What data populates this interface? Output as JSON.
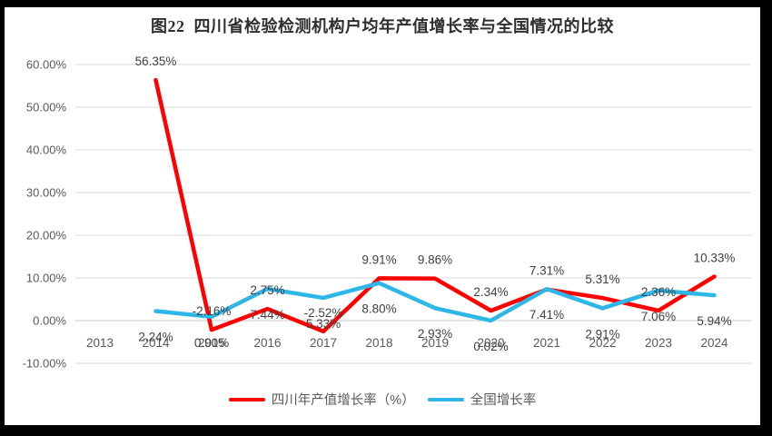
{
  "title": "图22  四川省检验检测机构户均年产值增长率与全国情况的比较",
  "colors": {
    "page_background": "#000000",
    "chart_background": "#ffffff",
    "gridline": "#d9d9d9",
    "zero_axis_line": "#c8c8c8",
    "tick_text": "#595959",
    "data_label_text": "#404040",
    "title_text": "#2e2e2e",
    "sichuan_line": "#fe0000",
    "national_line": "#2cb7e8"
  },
  "chart_data": {
    "type": "line",
    "title": "图22  四川省检验检测机构户均年产值增长率与全国情况的比较",
    "categories": [
      "2013",
      "2014",
      "2015",
      "2016",
      "2017",
      "2018",
      "2019",
      "2020",
      "2021",
      "2022",
      "2023",
      "2024"
    ],
    "series": [
      {
        "name": "四川年产值增长率（%）",
        "color": "#fe0000",
        "label_position": "above",
        "values": [
          null,
          56.35,
          -2.16,
          2.75,
          -2.52,
          9.91,
          9.86,
          2.34,
          7.31,
          5.31,
          2.36,
          10.33
        ],
        "labels": [
          "",
          "56.35%",
          "-2.16%",
          "2.75%",
          "-2.52%",
          "9.91%",
          "9.86%",
          "2.34%",
          "7.31%",
          "5.31%",
          "2.36%",
          "10.33%"
        ]
      },
      {
        "name": "全国增长率",
        "color": "#2cb7e8",
        "label_position": "below",
        "values": [
          null,
          2.24,
          0.9,
          7.44,
          5.33,
          8.8,
          2.93,
          0.02,
          7.41,
          2.91,
          7.06,
          5.94
        ],
        "labels": [
          "",
          "2.24%",
          "0.90%",
          "7.44%",
          "5.33%",
          "8.80%",
          "2.93%",
          "0.02%",
          "7.41%",
          "2.91%",
          "7.06%",
          "5.94%"
        ]
      }
    ],
    "y_axis": {
      "tick_labels": [
        "60.00%",
        "50.00%",
        "40.00%",
        "30.00%",
        "20.00%",
        "10.00%",
        "0.00%",
        "-10.00%"
      ],
      "tick_values": [
        60,
        50,
        40,
        30,
        20,
        10,
        0,
        -10
      ],
      "min": -10,
      "max": 60
    },
    "grid": true,
    "legend_position": "bottom"
  }
}
